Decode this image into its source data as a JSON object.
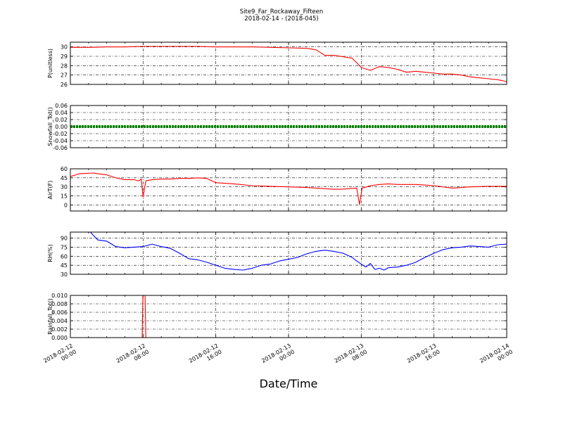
{
  "chart_data": {
    "type": "line",
    "title": "Site9_Far_Rockaway_Fifteen",
    "subtitle": "2018-02-14 - (2018-045)",
    "xlabel": "Date/Time",
    "x_ticks": [
      {
        "line1": "2018-02-12",
        "line2": "00:00",
        "hours": 0
      },
      {
        "line1": "2018-02-12",
        "line2": "08:00",
        "hours": 8
      },
      {
        "line1": "2018-02-12",
        "line2": "16:00",
        "hours": 16
      },
      {
        "line1": "2018-02-13",
        "line2": "00:00",
        "hours": 24
      },
      {
        "line1": "2018-02-13",
        "line2": "08:00",
        "hours": 32
      },
      {
        "line1": "2018-02-13",
        "line2": "16:00",
        "hours": 40
      },
      {
        "line1": "2018-02-14",
        "line2": "00:00",
        "hours": 48
      }
    ],
    "xlim_hours": [
      0,
      48
    ],
    "grid": true,
    "panels": [
      {
        "ylabel": "P(unitless)",
        "ylim": [
          26,
          30.5
        ],
        "yticks": [
          "26",
          "27",
          "28",
          "29",
          "30"
        ],
        "ytick_values": [
          26,
          27,
          28,
          29,
          30
        ],
        "series_color": "#ff0000",
        "x": [
          0,
          2,
          4,
          6,
          8,
          10,
          12,
          14,
          16,
          18,
          20,
          22,
          24,
          26,
          27,
          28,
          29,
          30,
          31,
          31.5,
          32,
          33,
          34,
          35,
          36,
          37,
          38,
          39,
          40,
          41,
          42,
          43,
          44,
          45,
          46,
          47,
          48
        ],
        "y": [
          29.95,
          29.95,
          30.0,
          30.0,
          30.05,
          30.05,
          30.05,
          30.05,
          30.0,
          30.0,
          30.0,
          29.95,
          29.9,
          29.85,
          29.7,
          29.1,
          29.1,
          28.95,
          28.8,
          28.3,
          27.8,
          27.5,
          27.9,
          27.8,
          27.6,
          27.3,
          27.4,
          27.3,
          27.2,
          27.1,
          27.1,
          27.0,
          26.8,
          26.7,
          26.6,
          26.5,
          26.3
        ]
      },
      {
        "ylabel": "Snowfall_Tot()",
        "ylim": [
          -0.06,
          0.06
        ],
        "yticks": [
          "-0.06",
          "-0.04",
          "-0.02",
          "0.00",
          "0.02",
          "0.04",
          "0.06"
        ],
        "ytick_values": [
          -0.06,
          -0.04,
          -0.02,
          0.0,
          0.02,
          0.04,
          0.06
        ],
        "series_color": "#008000",
        "x": [
          0,
          8,
          16,
          24,
          32,
          40,
          48
        ],
        "y": [
          0,
          0,
          0,
          0,
          0,
          0,
          0
        ]
      },
      {
        "ylabel": "AirT(F)",
        "ylim": [
          -10,
          60
        ],
        "yticks": [
          "0",
          "15",
          "30",
          "45",
          "60"
        ],
        "ytick_values": [
          0,
          15,
          30,
          45,
          60
        ],
        "series_color": "#ff0000",
        "x": [
          0,
          1,
          2.5,
          3,
          4,
          5,
          6,
          7,
          7.5,
          7.8,
          8.0,
          8.3,
          9,
          10,
          11,
          12,
          13,
          14,
          15,
          16,
          17,
          18,
          20,
          22,
          24,
          26,
          27,
          28,
          29,
          29.8,
          30.5,
          31.5,
          31.8,
          32.1,
          32.6,
          33,
          34,
          35,
          36,
          38,
          39,
          40,
          42,
          44,
          46,
          48
        ],
        "y": [
          47,
          52,
          53,
          52,
          50,
          45,
          42,
          42,
          40,
          43,
          13,
          40,
          42,
          43,
          43,
          44,
          44,
          45,
          44,
          37,
          36,
          35,
          32,
          31,
          30,
          29,
          28,
          27,
          26,
          26,
          27,
          28,
          1,
          28,
          30,
          32,
          34,
          35,
          34,
          34,
          33,
          32,
          28,
          30,
          31,
          31
        ]
      },
      {
        "ylabel": "RH(%)",
        "ylim": [
          30,
          100
        ],
        "yticks": [
          "30",
          "45",
          "60",
          "75",
          "90"
        ],
        "ytick_values": [
          30,
          45,
          60,
          75,
          90
        ],
        "series_color": "#0000ff",
        "x": [
          2.2,
          3,
          4,
          5,
          6,
          7,
          8,
          9,
          10,
          11,
          12,
          13,
          14,
          15,
          16,
          17,
          18,
          19,
          20,
          21,
          22,
          23,
          24,
          25,
          26,
          27,
          28,
          29,
          30,
          31,
          31.5,
          32,
          32.5,
          33,
          33.5,
          34,
          34.5,
          35,
          36,
          37,
          38,
          39,
          40,
          41,
          42,
          43,
          44,
          45,
          46,
          47,
          48
        ],
        "y": [
          100,
          87,
          85,
          76,
          74,
          75,
          76,
          80,
          76,
          73,
          65,
          56,
          54,
          50,
          45,
          40,
          38,
          37,
          40,
          45,
          47,
          52,
          55,
          58,
          64,
          68,
          70,
          68,
          65,
          58,
          52,
          47,
          42,
          48,
          38,
          40,
          37,
          41,
          42,
          45,
          50,
          58,
          65,
          71,
          74,
          75,
          77,
          76,
          75,
          79,
          80
        ]
      },
      {
        "ylabel": "Rainfall_Tot()",
        "ylim": [
          0.0,
          0.01
        ],
        "yticks": [
          "0.000",
          "0.002",
          "0.004",
          "0.006",
          "0.008",
          "0.010"
        ],
        "ytick_values": [
          0.0,
          0.002,
          0.004,
          0.006,
          0.008,
          0.01
        ],
        "series_color": "#ff0000",
        "x": [
          0,
          7.9,
          8.0,
          8.2,
          8.3,
          48
        ],
        "y": [
          0,
          0,
          0.012,
          0.012,
          0,
          0
        ]
      }
    ]
  }
}
